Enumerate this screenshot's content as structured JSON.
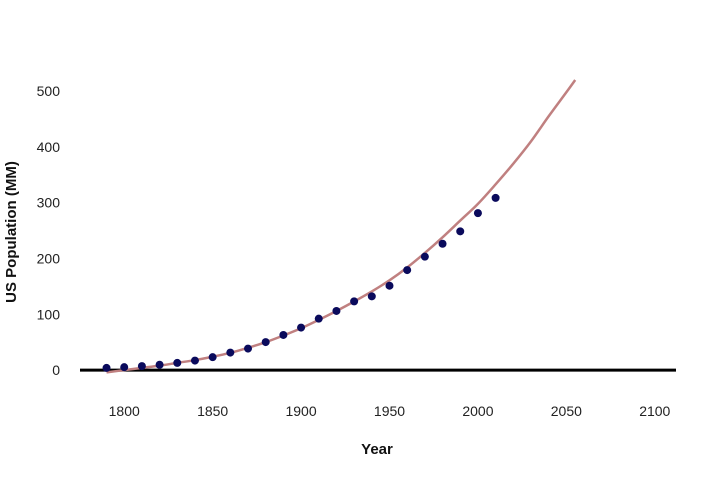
{
  "chart_data": {
    "type": "scatter",
    "title": "",
    "xlabel": "Year",
    "ylabel": "US Population (MM)",
    "xlim": [
      1775,
      2112
    ],
    "ylim": [
      -50,
      520
    ],
    "xticks": [
      1800,
      1850,
      1900,
      1950,
      2000,
      2050,
      2100
    ],
    "yticks": [
      0,
      100,
      200,
      300,
      400,
      500
    ],
    "grid": false,
    "legend": "none",
    "colors": {
      "points": "#0a0a5c",
      "fit": "#c08080",
      "baseline": "#000000"
    },
    "series": [
      {
        "kind": "points",
        "x": [
          1790,
          1800,
          1810,
          1820,
          1830,
          1840,
          1850,
          1860,
          1870,
          1880,
          1890,
          1900,
          1910,
          1920,
          1930,
          1940,
          1950,
          1960,
          1970,
          1980,
          1990,
          2000,
          2010
        ],
        "y": [
          3.9,
          5.3,
          7.2,
          9.6,
          12.9,
          17.1,
          23.2,
          31.4,
          38.6,
          50.2,
          63.0,
          76.2,
          92.2,
          106.0,
          123.2,
          132.2,
          151.3,
          179.3,
          203.3,
          226.5,
          248.7,
          281.4,
          308.7
        ]
      },
      {
        "kind": "fit-curve",
        "x": [
          1790,
          1800,
          1810,
          1820,
          1830,
          1840,
          1850,
          1860,
          1870,
          1880,
          1890,
          1900,
          1910,
          1920,
          1930,
          1940,
          1950,
          1960,
          1970,
          1980,
          1990,
          2000,
          2010,
          2020,
          2030,
          2040,
          2050,
          2055
        ],
        "y": [
          -4,
          0,
          4,
          8,
          13,
          18,
          24,
          31,
          40,
          50,
          62,
          75,
          90,
          106,
          123,
          141,
          161,
          184,
          210,
          238,
          268,
          298,
          333,
          370,
          410,
          455,
          498,
          520
        ]
      }
    ]
  }
}
